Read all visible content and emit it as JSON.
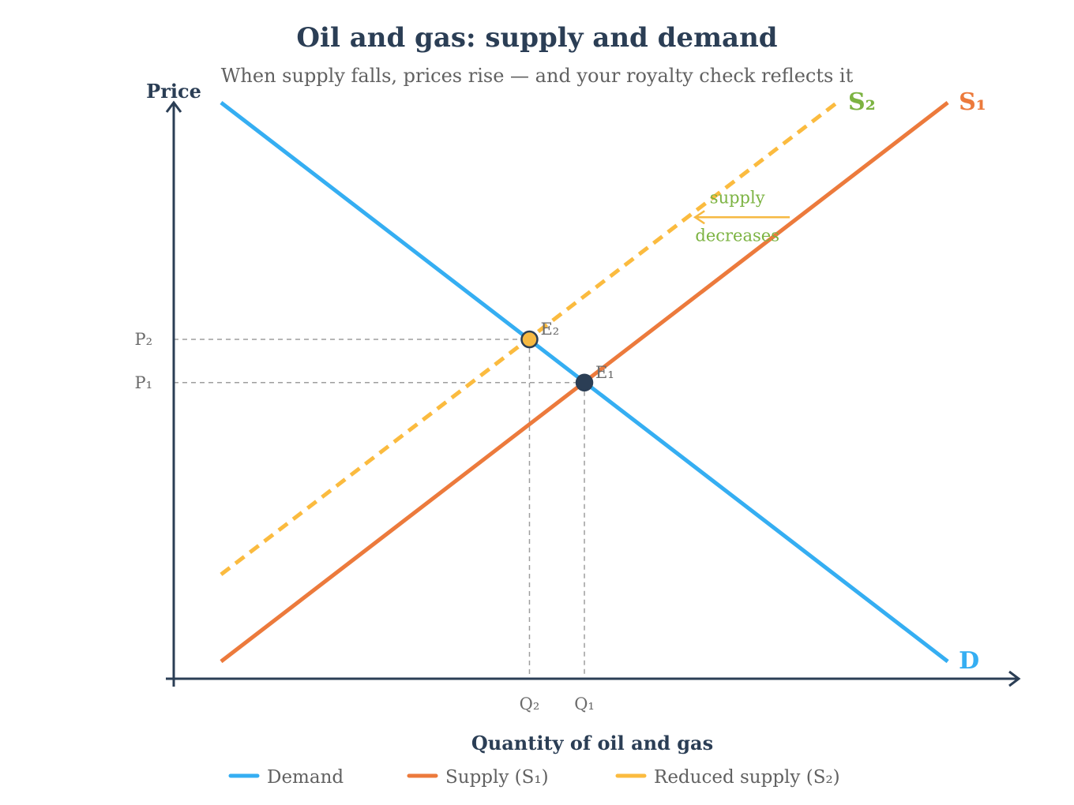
{
  "chart_data": {
    "type": "line",
    "title": "Oil and gas: supply and demand",
    "subtitle": "When supply falls, prices rise — and your royalty check reflects it",
    "xlabel": "Quantity of oil and gas",
    "ylabel": "Price",
    "xlim": [
      0,
      100
    ],
    "ylim": [
      0,
      100
    ],
    "grid": false,
    "legend_position": "bottom",
    "series": [
      {
        "key": "demand",
        "name": "Demand",
        "curve_label": "D",
        "color": "#35aef2",
        "dash": false,
        "points": [
          [
            5.6,
            100
          ],
          [
            91.6,
            3
          ]
        ]
      },
      {
        "key": "s1",
        "name": "Supply (S₁)",
        "curve_label": "S₁",
        "color": "#ec7a3c",
        "dash": false,
        "points": [
          [
            5.6,
            3
          ],
          [
            91.6,
            100
          ]
        ]
      },
      {
        "key": "s2",
        "name": "Reduced supply (S₂)",
        "curve_label": "S₂",
        "color": "#fbbb3f",
        "dash": true,
        "points": [
          [
            5.6,
            18.1
          ],
          [
            78.5,
            100
          ]
        ]
      }
    ],
    "equilibria": [
      {
        "key": "e1",
        "label": "E₁",
        "x": 48.6,
        "y": 51.4,
        "fill": "#2b3e55",
        "stroke": "#2b3e55"
      },
      {
        "key": "e2",
        "label": "E₂",
        "x": 42.1,
        "y": 58.9,
        "fill": "#f6b942",
        "stroke": "#2b3e55"
      }
    ],
    "price_ticks": [
      {
        "label": "P₂",
        "value": 58.9
      },
      {
        "label": "P₁",
        "value": 51.4
      }
    ],
    "quantity_ticks": [
      {
        "label": "Q₂",
        "value": 42.1
      },
      {
        "label": "Q₁",
        "value": 48.6
      }
    ],
    "annotation": {
      "lines": [
        "supply",
        "decreases"
      ],
      "arrow_from": [
        72.9,
        80.1
      ],
      "arrow_to": [
        61.7,
        80.1
      ],
      "text_x": 66.7,
      "text_color": "#7cb342",
      "arrow_color": "#f6b942"
    },
    "axis_color": "#2b3e55",
    "guide_color": "#9e9e9e"
  }
}
